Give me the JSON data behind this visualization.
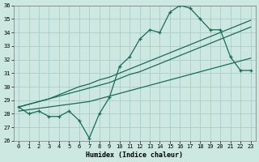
{
  "xlabel": "Humidex (Indice chaleur)",
  "bg_color": "#cce8e0",
  "grid_color": "#aacccc",
  "line_color": "#1a6b5a",
  "x_data": [
    0,
    1,
    2,
    3,
    4,
    5,
    6,
    7,
    8,
    9,
    10,
    11,
    12,
    13,
    14,
    15,
    16,
    17,
    18,
    19,
    20,
    21,
    22,
    23
  ],
  "y_main": [
    28.5,
    28.0,
    28.2,
    27.8,
    27.8,
    28.2,
    27.5,
    26.2,
    28.0,
    29.2,
    31.5,
    32.2,
    33.5,
    34.2,
    34.0,
    35.5,
    36.0,
    35.8,
    35.0,
    34.2,
    34.2,
    32.2,
    31.2,
    31.2
  ],
  "y_trend_low": [
    28.2,
    28.3,
    28.4,
    28.5,
    28.6,
    28.7,
    28.8,
    28.9,
    29.1,
    29.3,
    29.5,
    29.7,
    29.9,
    30.1,
    30.3,
    30.5,
    30.7,
    30.9,
    31.1,
    31.3,
    31.5,
    31.7,
    31.9,
    32.1
  ],
  "y_trend_mid": [
    28.5,
    28.7,
    28.9,
    29.1,
    29.3,
    29.5,
    29.7,
    29.9,
    30.1,
    30.3,
    30.6,
    30.9,
    31.1,
    31.4,
    31.7,
    32.0,
    32.3,
    32.6,
    32.9,
    33.2,
    33.5,
    33.8,
    34.1,
    34.4
  ],
  "y_trend_high": [
    28.5,
    28.7,
    28.9,
    29.1,
    29.4,
    29.7,
    30.0,
    30.2,
    30.5,
    30.7,
    31.0,
    31.3,
    31.6,
    31.9,
    32.2,
    32.5,
    32.8,
    33.1,
    33.4,
    33.7,
    34.0,
    34.3,
    34.6,
    34.9
  ],
  "ylim": [
    26,
    36
  ],
  "xlim": [
    -0.5,
    23.5
  ],
  "yticks": [
    26,
    27,
    28,
    29,
    30,
    31,
    32,
    33,
    34,
    35,
    36
  ],
  "xticks": [
    0,
    1,
    2,
    3,
    4,
    5,
    6,
    7,
    8,
    9,
    10,
    11,
    12,
    13,
    14,
    15,
    16,
    17,
    18,
    19,
    20,
    21,
    22,
    23
  ]
}
